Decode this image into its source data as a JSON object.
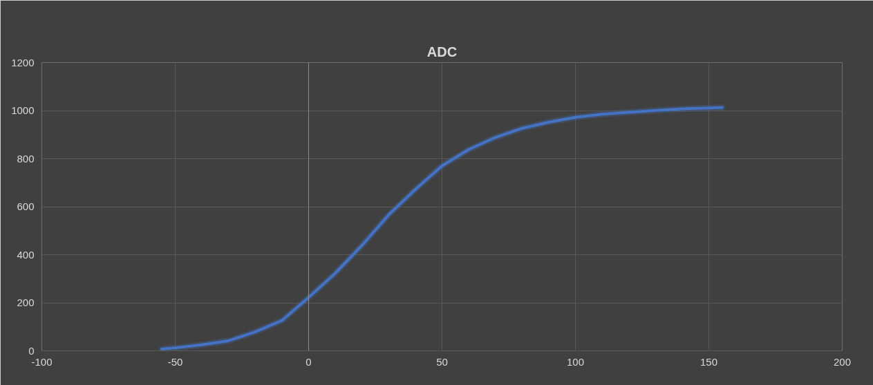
{
  "chart_data": {
    "type": "line",
    "title": "ADC",
    "x": [
      -55,
      -50,
      -40,
      -30,
      -20,
      -10,
      0,
      10,
      20,
      30,
      40,
      50,
      60,
      70,
      80,
      90,
      100,
      110,
      120,
      130,
      140,
      150,
      155
    ],
    "series": [
      {
        "color": "#4472c4",
        "values": [
          7,
          12,
          25,
          42,
          79,
          126,
          222,
          323,
          439,
          566,
          672,
          770,
          838,
          888,
          926,
          952,
          972,
          985,
          993,
          1001,
          1007,
          1011,
          1013
        ]
      }
    ],
    "xlim": [
      -100,
      200
    ],
    "xticks": [
      -100,
      -50,
      0,
      50,
      100,
      150,
      200
    ],
    "ylim": [
      0,
      1200
    ],
    "yticks": [
      0,
      200,
      400,
      600,
      800,
      1000,
      1200
    ],
    "grid": true,
    "marker": "none",
    "line_style": "solid"
  }
}
